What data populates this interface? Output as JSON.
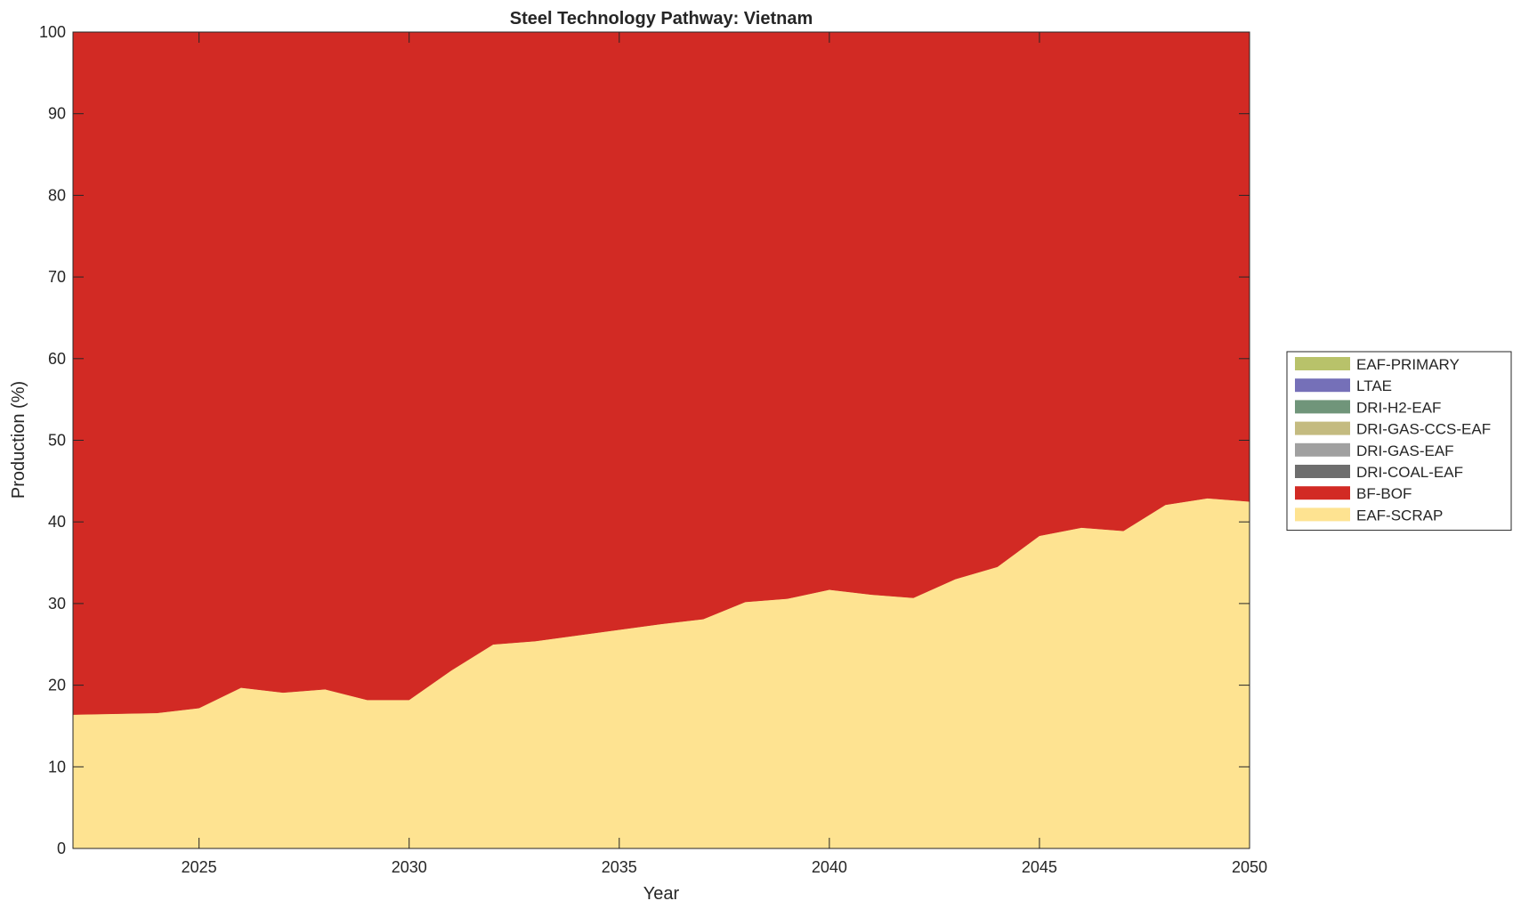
{
  "chart_data": {
    "type": "area",
    "stacked": true,
    "title": "Steel Technology Pathway: Vietnam",
    "xlabel": "Year",
    "ylabel": "Production (%)",
    "xlim": [
      2022,
      2050
    ],
    "ylim": [
      0,
      100
    ],
    "xticks": [
      2025,
      2030,
      2035,
      2040,
      2045,
      2050
    ],
    "yticks": [
      0,
      10,
      20,
      30,
      40,
      50,
      60,
      70,
      80,
      90,
      100
    ],
    "legend_position": "right",
    "x": [
      2022,
      2023,
      2024,
      2025,
      2026,
      2027,
      2028,
      2029,
      2030,
      2031,
      2032,
      2033,
      2034,
      2035,
      2036,
      2037,
      2038,
      2039,
      2040,
      2041,
      2042,
      2043,
      2044,
      2045,
      2046,
      2047,
      2048,
      2049,
      2050
    ],
    "series": [
      {
        "name": "EAF-SCRAP",
        "color": "#fee391",
        "values": [
          16.4,
          16.5,
          16.6,
          17.2,
          19.7,
          19.1,
          19.5,
          18.2,
          18.2,
          21.8,
          25.0,
          25.4,
          26.1,
          26.8,
          27.5,
          28.1,
          30.2,
          30.6,
          31.7,
          31.1,
          30.7,
          33.0,
          34.5,
          38.3,
          39.3,
          38.9,
          42.1,
          42.9,
          42.5
        ]
      },
      {
        "name": "BF-BOF",
        "color": "#d22a24",
        "values": [
          83.6,
          83.5,
          83.4,
          82.8,
          80.3,
          80.9,
          80.5,
          81.8,
          81.8,
          78.2,
          75.0,
          74.6,
          73.9,
          73.2,
          72.5,
          71.9,
          69.8,
          69.4,
          68.3,
          68.9,
          69.3,
          67.0,
          65.5,
          61.7,
          60.7,
          61.1,
          57.9,
          57.1,
          57.5
        ]
      },
      {
        "name": "DRI-COAL-EAF",
        "color": "#6e6e6e",
        "values": [
          0,
          0,
          0,
          0,
          0,
          0,
          0,
          0,
          0,
          0,
          0,
          0,
          0,
          0,
          0,
          0,
          0,
          0,
          0,
          0,
          0,
          0,
          0,
          0,
          0,
          0,
          0,
          0,
          0
        ]
      },
      {
        "name": "DRI-GAS-EAF",
        "color": "#a0a0a0",
        "values": [
          0,
          0,
          0,
          0,
          0,
          0,
          0,
          0,
          0,
          0,
          0,
          0,
          0,
          0,
          0,
          0,
          0,
          0,
          0,
          0,
          0,
          0,
          0,
          0,
          0,
          0,
          0,
          0,
          0
        ]
      },
      {
        "name": "DRI-GAS-CCS-EAF",
        "color": "#c4bb80",
        "values": [
          0,
          0,
          0,
          0,
          0,
          0,
          0,
          0,
          0,
          0,
          0,
          0,
          0,
          0,
          0,
          0,
          0,
          0,
          0,
          0,
          0,
          0,
          0,
          0,
          0,
          0,
          0,
          0,
          0
        ]
      },
      {
        "name": "DRI-H2-EAF",
        "color": "#70957a",
        "values": [
          0,
          0,
          0,
          0,
          0,
          0,
          0,
          0,
          0,
          0,
          0,
          0,
          0,
          0,
          0,
          0,
          0,
          0,
          0,
          0,
          0,
          0,
          0,
          0,
          0,
          0,
          0,
          0,
          0
        ]
      },
      {
        "name": "LTAE",
        "color": "#7570b8",
        "values": [
          0,
          0,
          0,
          0,
          0,
          0,
          0,
          0,
          0,
          0,
          0,
          0,
          0,
          0,
          0,
          0,
          0,
          0,
          0,
          0,
          0,
          0,
          0,
          0,
          0,
          0,
          0,
          0,
          0
        ]
      },
      {
        "name": "EAF-PRIMARY",
        "color": "#b8c26a",
        "values": [
          0,
          0,
          0,
          0,
          0,
          0,
          0,
          0,
          0,
          0,
          0,
          0,
          0,
          0,
          0,
          0,
          0,
          0,
          0,
          0,
          0,
          0,
          0,
          0,
          0,
          0,
          0,
          0,
          0
        ]
      }
    ]
  }
}
